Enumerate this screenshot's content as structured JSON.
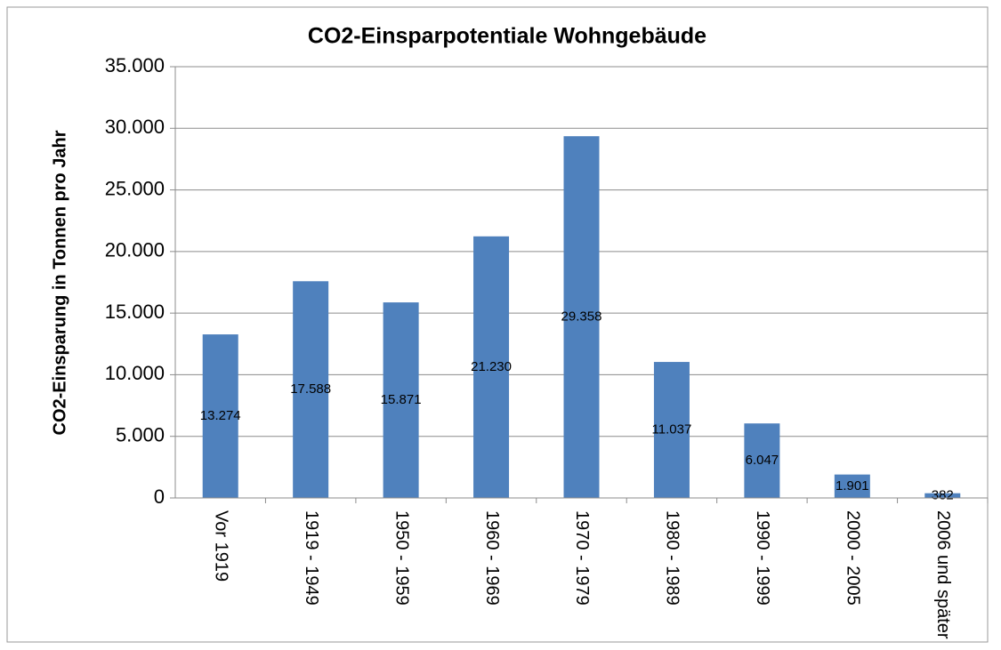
{
  "chart_data": {
    "type": "bar",
    "title": "CO2-Einsparpotentiale Wohngebäude",
    "y_label": "CO2-Einsparung in Tonnen pro Jahr",
    "categories": [
      "Vor 1919",
      "1919 - 1949",
      "1950 - 1959",
      "1960 - 1969",
      "1970 - 1979",
      "1980 - 1989",
      "1990 - 1999",
      "2000 - 2005",
      "2006 und später"
    ],
    "values": [
      13274,
      17588,
      15871,
      21230,
      29358,
      11037,
      6047,
      1901,
      382
    ],
    "value_labels": [
      "13.274",
      "17.588",
      "15.871",
      "21.230",
      "29.358",
      "11.037",
      "6.047",
      "1.901",
      "382"
    ],
    "color": "#4f81bd",
    "ylim": [
      0,
      35000
    ],
    "yticks": [
      0,
      {
        "value": 5000,
        "label": "5.000"
      },
      {
        "value": 10000,
        "label": "10.000"
      },
      {
        "value": 15000,
        "label": "15.000"
      },
      {
        "value": 20000,
        "label": "20.000"
      },
      {
        "value": 25000,
        "label": "25.000"
      },
      {
        "value": 30000,
        "label": "30.000"
      },
      {
        "value": 35000,
        "label": "35.000"
      }
    ],
    "grid": true
  }
}
